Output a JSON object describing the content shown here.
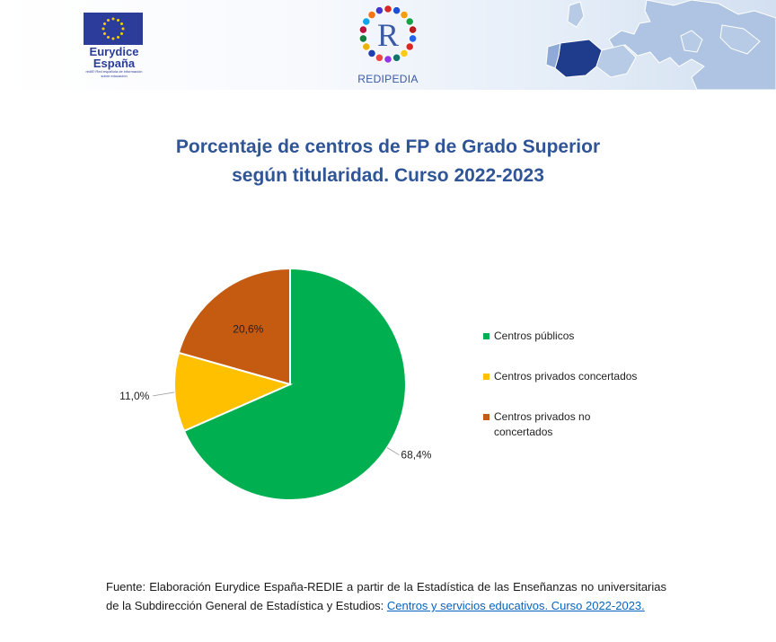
{
  "header": {
    "eu_logo": {
      "line1": "Eurydice",
      "line2": "España",
      "tiny": "redIE·Red española de información sobre educación"
    },
    "redi_logo": {
      "letter": "R",
      "name": "REDIPEDIA"
    }
  },
  "chart_data": {
    "type": "pie",
    "title": [
      "Porcentaje de centros de FP de Grado Superior",
      "según titularidad. Curso 2022-2023"
    ],
    "series": [
      {
        "name": "Centros públicos",
        "value": 68.4,
        "label": "68,4%",
        "color": "#00b050"
      },
      {
        "name": "Centros privados concertados",
        "value": 11.0,
        "label": "11,0%",
        "color": "#ffc000"
      },
      {
        "name": "Centros privados no concertados",
        "value": 20.6,
        "label": "20,6%",
        "color": "#c55a11"
      }
    ],
    "legend_position": "right",
    "legend_lines": [
      [
        "Centros públicos"
      ],
      [
        "Centros privados concertados"
      ],
      [
        "Centros privados no",
        "concertados"
      ]
    ]
  },
  "source": {
    "text": "Fuente: Elaboración Eurydice España-REDIE a partir de la Estadística de las Enseñanzas no universitarias de la Subdirección General de Estadística y Estudios: ",
    "link": "Centros y servicios educativos. Curso 2022-2023."
  }
}
